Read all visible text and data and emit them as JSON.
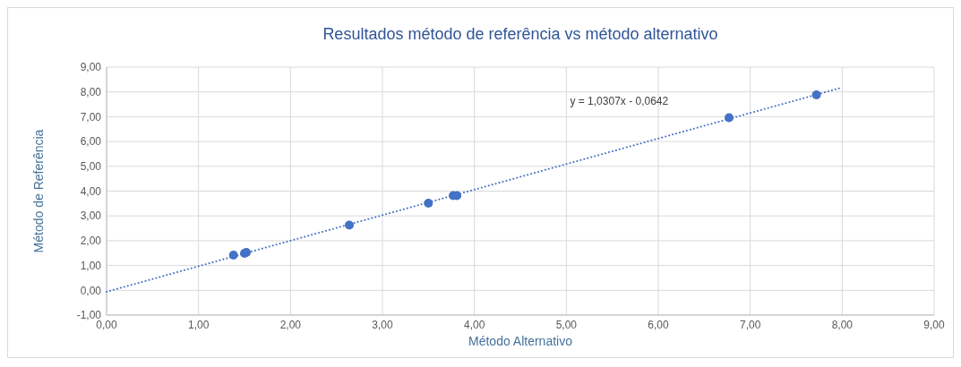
{
  "chart_data": {
    "type": "scatter",
    "title": "Resultados método de referência vs método alternativo",
    "xlabel": "Método Alternativo",
    "ylabel": "Método de Referência",
    "xlim": [
      0,
      9
    ],
    "ylim": [
      -1,
      9
    ],
    "xticks": [
      {
        "value": 0,
        "label": "0,00"
      },
      {
        "value": 1,
        "label": "1,00"
      },
      {
        "value": 2,
        "label": "2,00"
      },
      {
        "value": 3,
        "label": "3,00"
      },
      {
        "value": 4,
        "label": "4,00"
      },
      {
        "value": 5,
        "label": "5,00"
      },
      {
        "value": 6,
        "label": "6,00"
      },
      {
        "value": 7,
        "label": "7,00"
      },
      {
        "value": 8,
        "label": "8,00"
      },
      {
        "value": 9,
        "label": "9,00"
      }
    ],
    "yticks": [
      {
        "value": -1,
        "label": "-1,00"
      },
      {
        "value": 0,
        "label": "0,00"
      },
      {
        "value": 1,
        "label": "1,00"
      },
      {
        "value": 2,
        "label": "2,00"
      },
      {
        "value": 3,
        "label": "3,00"
      },
      {
        "value": 4,
        "label": "4,00"
      },
      {
        "value": 5,
        "label": "5,00"
      },
      {
        "value": 6,
        "label": "6,00"
      },
      {
        "value": 7,
        "label": "7,00"
      },
      {
        "value": 8,
        "label": "8,00"
      },
      {
        "value": 9,
        "label": "9,00"
      }
    ],
    "grid": true,
    "series": [
      {
        "color": "#4472c4",
        "marker": "circle",
        "x": [
          1.38,
          1.5,
          1.52,
          2.64,
          3.5,
          3.77,
          3.81,
          6.77,
          7.72
        ],
        "values": [
          1.42,
          1.49,
          1.53,
          2.63,
          3.51,
          3.82,
          3.82,
          6.96,
          7.88
        ]
      },
      {
        "type": "line",
        "color": "#4472c4",
        "marker": "none",
        "line_style": "dotted",
        "x": [
          0,
          8.0
        ],
        "values": [
          -0.06,
          8.18
        ]
      }
    ],
    "annotations": [
      "y = 1,0307x - 0,0642"
    ]
  }
}
